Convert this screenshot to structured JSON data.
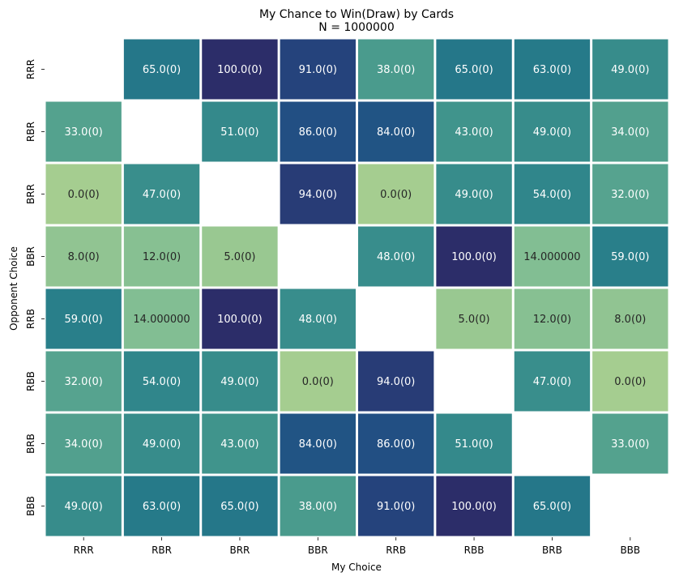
{
  "chart_data": {
    "type": "heatmap",
    "title": "My Chance to Win(Draw) by Cards",
    "subtitle": "N = 1000000",
    "xlabel": "My Choice",
    "ylabel": "Opponent Choice",
    "x_categories": [
      "RRR",
      "RBR",
      "BRR",
      "BBR",
      "RRB",
      "RBB",
      "BRB",
      "BBB"
    ],
    "y_categories": [
      "RRR",
      "RBR",
      "BRR",
      "BBR",
      "RRB",
      "RBB",
      "BRB",
      "BBB"
    ],
    "values": [
      [
        null,
        65,
        100,
        91,
        38,
        65,
        63,
        49
      ],
      [
        33,
        null,
        51,
        86,
        84,
        43,
        49,
        34
      ],
      [
        0,
        47,
        null,
        94,
        0,
        49,
        54,
        32
      ],
      [
        8,
        12,
        5,
        null,
        48,
        100,
        14,
        59
      ],
      [
        59,
        14,
        100,
        48,
        null,
        5,
        12,
        8
      ],
      [
        32,
        54,
        49,
        0,
        94,
        null,
        47,
        0
      ],
      [
        34,
        49,
        43,
        84,
        86,
        51,
        null,
        33
      ],
      [
        49,
        63,
        65,
        38,
        91,
        100,
        65,
        null
      ]
    ],
    "labels": [
      [
        "",
        "65.0(0)",
        "100.0(0)",
        "91.0(0)",
        "38.0(0)",
        "65.0(0)",
        "63.0(0)",
        "49.0(0)"
      ],
      [
        "33.0(0)",
        "",
        "51.0(0)",
        "86.0(0)",
        "84.0(0)",
        "43.0(0)",
        "49.0(0)",
        "34.0(0)"
      ],
      [
        "0.0(0)",
        "47.0(0)",
        "",
        "94.0(0)",
        "0.0(0)",
        "49.0(0)",
        "54.0(0)",
        "32.0(0)"
      ],
      [
        "8.0(0)",
        "12.0(0)",
        "5.0(0)",
        "",
        "48.0(0)",
        "100.0(0)",
        "14.000000",
        "59.0(0)"
      ],
      [
        "59.0(0)",
        "14.000000",
        "100.0(0)",
        "48.0(0)",
        "",
        "5.0(0)",
        "12.0(0)",
        "8.0(0)"
      ],
      [
        "32.0(0)",
        "54.0(0)",
        "49.0(0)",
        "0.0(0)",
        "94.0(0)",
        "",
        "47.0(0)",
        "0.0(0)"
      ],
      [
        "34.0(0)",
        "49.0(0)",
        "43.0(0)",
        "84.0(0)",
        "86.0(0)",
        "51.0(0)",
        "",
        "33.0(0)"
      ],
      [
        "49.0(0)",
        "63.0(0)",
        "65.0(0)",
        "38.0(0)",
        "91.0(0)",
        "100.0(0)",
        "65.0(0)",
        ""
      ]
    ],
    "value_range": [
      0,
      100
    ],
    "colormap": "crest",
    "colorbar": false,
    "grid": false
  }
}
